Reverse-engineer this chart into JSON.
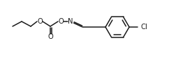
{
  "bg_color": "#ffffff",
  "line_color": "#1a1a1a",
  "line_width": 1.1,
  "font_size": 7.2,
  "figsize": [
    2.72,
    0.88
  ],
  "dpi": 100,
  "xlim": [
    0,
    272
  ],
  "ylim": [
    0,
    88
  ]
}
